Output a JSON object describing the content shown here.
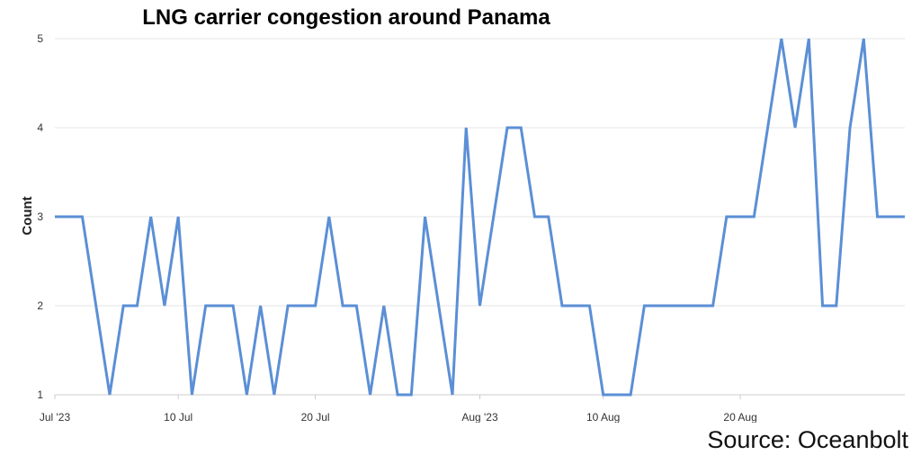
{
  "chart_data": {
    "type": "line",
    "title": "LNG carrier congestion around Panama",
    "xlabel": "",
    "ylabel": "Count",
    "ylim": [
      1,
      5
    ],
    "y_ticks": [
      "1",
      "2",
      "3",
      "4",
      "5"
    ],
    "x_ticks": [
      "Jul '23",
      "10 Jul",
      "20 Jul",
      "Aug '23",
      "10 Aug",
      "20 Aug"
    ],
    "grid": true,
    "line_color": "#5b8fd6",
    "series": [
      {
        "x": [
          "2023-07-01",
          "2023-07-02",
          "2023-07-03",
          "2023-07-04",
          "2023-07-05",
          "2023-07-06",
          "2023-07-07",
          "2023-07-08",
          "2023-07-09",
          "2023-07-10",
          "2023-07-11",
          "2023-07-12",
          "2023-07-13",
          "2023-07-14",
          "2023-07-15",
          "2023-07-16",
          "2023-07-17",
          "2023-07-18",
          "2023-07-19",
          "2023-07-20",
          "2023-07-21",
          "2023-07-22",
          "2023-07-23",
          "2023-07-24",
          "2023-07-25",
          "2023-07-26",
          "2023-07-27",
          "2023-07-28",
          "2023-07-29",
          "2023-07-30",
          "2023-07-31",
          "2023-08-01",
          "2023-08-02",
          "2023-08-03",
          "2023-08-04",
          "2023-08-05",
          "2023-08-06",
          "2023-08-07",
          "2023-08-08",
          "2023-08-09",
          "2023-08-10",
          "2023-08-11",
          "2023-08-12",
          "2023-08-13",
          "2023-08-14",
          "2023-08-15",
          "2023-08-16",
          "2023-08-17",
          "2023-08-18",
          "2023-08-19",
          "2023-08-20",
          "2023-08-21",
          "2023-08-22",
          "2023-08-23",
          "2023-08-24",
          "2023-08-25",
          "2023-08-26",
          "2023-08-27",
          "2023-08-28",
          "2023-08-29",
          "2023-08-30",
          "2023-08-31",
          "2023-09-01"
        ],
        "values": [
          3,
          3,
          3,
          2,
          1,
          2,
          2,
          3,
          2,
          3,
          1,
          2,
          2,
          2,
          1,
          2,
          1,
          2,
          2,
          2,
          3,
          2,
          2,
          1,
          2,
          1,
          1,
          3,
          2,
          1,
          4,
          2,
          3,
          4,
          4,
          3,
          3,
          2,
          2,
          2,
          1,
          1,
          1,
          2,
          2,
          2,
          2,
          2,
          2,
          3,
          3,
          3,
          4,
          5,
          4,
          5,
          2,
          2,
          4,
          5,
          3,
          3,
          3
        ]
      }
    ]
  },
  "source": "Source: Oceanbolt"
}
